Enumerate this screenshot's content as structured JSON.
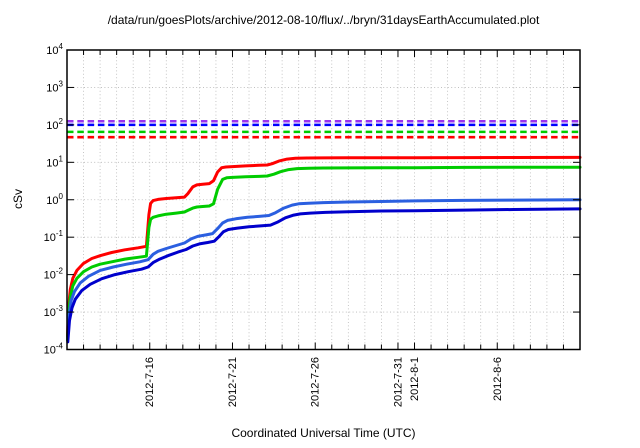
{
  "page": {
    "background": "#ffffff"
  },
  "header": {
    "title": "/data/run/goesPlots/archive/2012-08-10/flux/../bryn/31daysEarthAccumulated.plot"
  },
  "chart_data": {
    "type": "line",
    "title": "/data/run/goesPlots/archive/2012-08-10/flux/../bryn/31daysEarthAccumulated.plot",
    "xlabel": "Coordinated Universal Time (UTC)",
    "ylabel": "cSv",
    "grid": true,
    "legend_position": "none",
    "y_axis": {
      "scale": "log",
      "min": 0.0001,
      "max": 10000,
      "unit": "cSv",
      "decade_exponents": [
        4,
        3,
        2,
        1,
        0,
        -1,
        -2,
        -3,
        -4
      ]
    },
    "x_axis": {
      "span_days": 31,
      "minor_tick_every_days": 1,
      "tick_labels": [
        {
          "label": "2012-7-16",
          "day": 5
        },
        {
          "label": "2012-7-21",
          "day": 10
        },
        {
          "label": "2012-7-26",
          "day": 15
        },
        {
          "label": "2012-7-31",
          "day": 20
        },
        {
          "label": "2012-8-1",
          "day": 21
        },
        {
          "label": "2012-8-6",
          "day": 26
        }
      ]
    },
    "limit_lines": [
      {
        "name": "limit-purple",
        "color": "#9933ee",
        "value": 125
      },
      {
        "name": "limit-blue",
        "color": "#0000ff",
        "value": 100
      },
      {
        "name": "limit-green",
        "color": "#00cc00",
        "value": 65
      },
      {
        "name": "limit-red",
        "color": "#ff0000",
        "value": 47
      }
    ],
    "series": [
      {
        "name": "accumulated-dose-red",
        "color": "#ff0000",
        "width": 3,
        "points": [
          [
            0.03,
            0.00022
          ],
          [
            0.1,
            0.0015
          ],
          [
            0.2,
            0.004
          ],
          [
            0.35,
            0.008
          ],
          [
            0.6,
            0.013
          ],
          [
            1,
            0.02
          ],
          [
            1.5,
            0.027
          ],
          [
            2,
            0.032
          ],
          [
            2.7,
            0.039
          ],
          [
            3.5,
            0.046
          ],
          [
            4.3,
            0.052
          ],
          [
            4.8,
            0.057
          ],
          [
            4.95,
            0.4
          ],
          [
            5.05,
            0.8
          ],
          [
            5.2,
            0.95
          ],
          [
            5.5,
            1.02
          ],
          [
            6,
            1.08
          ],
          [
            6.6,
            1.13
          ],
          [
            7.1,
            1.18
          ],
          [
            7.3,
            1.45
          ],
          [
            7.6,
            2.2
          ],
          [
            7.85,
            2.5
          ],
          [
            8.2,
            2.6
          ],
          [
            8.6,
            2.7
          ],
          [
            8.85,
            3.2
          ],
          [
            9.1,
            5.5
          ],
          [
            9.35,
            7.2
          ],
          [
            9.6,
            7.5
          ],
          [
            10,
            7.7
          ],
          [
            10.8,
            8.0
          ],
          [
            11.6,
            8.3
          ],
          [
            12.1,
            8.5
          ],
          [
            12.4,
            9.2
          ],
          [
            12.8,
            10.8
          ],
          [
            13.3,
            12.2
          ],
          [
            13.8,
            12.8
          ],
          [
            14.5,
            13.0
          ],
          [
            15.5,
            13.1
          ],
          [
            17,
            13.2
          ],
          [
            19,
            13.25
          ],
          [
            21,
            13.3
          ],
          [
            24,
            13.4
          ],
          [
            27,
            13.45
          ],
          [
            31,
            13.5
          ]
        ]
      },
      {
        "name": "accumulated-dose-green",
        "color": "#00cc00",
        "width": 3,
        "points": [
          [
            0.03,
            0.00018
          ],
          [
            0.1,
            0.001
          ],
          [
            0.2,
            0.0025
          ],
          [
            0.35,
            0.005
          ],
          [
            0.6,
            0.008
          ],
          [
            1,
            0.012
          ],
          [
            1.5,
            0.016
          ],
          [
            2,
            0.019
          ],
          [
            2.7,
            0.022
          ],
          [
            3.5,
            0.026
          ],
          [
            4.3,
            0.029
          ],
          [
            4.8,
            0.031
          ],
          [
            4.95,
            0.18
          ],
          [
            5.05,
            0.3
          ],
          [
            5.2,
            0.34
          ],
          [
            5.5,
            0.37
          ],
          [
            6,
            0.41
          ],
          [
            6.6,
            0.44
          ],
          [
            7.1,
            0.47
          ],
          [
            7.3,
            0.52
          ],
          [
            7.6,
            0.6
          ],
          [
            7.85,
            0.64
          ],
          [
            8.2,
            0.66
          ],
          [
            8.6,
            0.68
          ],
          [
            8.85,
            0.78
          ],
          [
            9.1,
            1.9
          ],
          [
            9.4,
            3.5
          ],
          [
            9.65,
            3.85
          ],
          [
            10,
            3.95
          ],
          [
            10.8,
            4.1
          ],
          [
            11.6,
            4.2
          ],
          [
            12.1,
            4.3
          ],
          [
            12.5,
            4.8
          ],
          [
            12.9,
            5.6
          ],
          [
            13.4,
            6.4
          ],
          [
            13.9,
            6.8
          ],
          [
            14.6,
            6.95
          ],
          [
            15.5,
            7.05
          ],
          [
            17,
            7.1
          ],
          [
            19,
            7.15
          ],
          [
            21,
            7.2
          ],
          [
            24,
            7.3
          ],
          [
            27,
            7.35
          ],
          [
            31,
            7.4
          ]
        ]
      },
      {
        "name": "accumulated-dose-light-blue",
        "color": "#2b5fe0",
        "width": 3,
        "points": [
          [
            0.04,
            0.00018
          ],
          [
            0.12,
            0.0008
          ],
          [
            0.25,
            0.002
          ],
          [
            0.45,
            0.0035
          ],
          [
            0.8,
            0.006
          ],
          [
            1.3,
            0.009
          ],
          [
            2,
            0.013
          ],
          [
            2.8,
            0.016
          ],
          [
            3.6,
            0.019
          ],
          [
            4.4,
            0.022
          ],
          [
            4.9,
            0.025
          ],
          [
            5.2,
            0.035
          ],
          [
            5.5,
            0.042
          ],
          [
            6,
            0.05
          ],
          [
            6.6,
            0.06
          ],
          [
            7.1,
            0.07
          ],
          [
            7.5,
            0.09
          ],
          [
            7.9,
            0.105
          ],
          [
            8.4,
            0.115
          ],
          [
            8.8,
            0.125
          ],
          [
            9.1,
            0.17
          ],
          [
            9.4,
            0.24
          ],
          [
            9.7,
            0.28
          ],
          [
            10.2,
            0.31
          ],
          [
            10.9,
            0.34
          ],
          [
            11.6,
            0.36
          ],
          [
            12.2,
            0.38
          ],
          [
            12.6,
            0.45
          ],
          [
            13.1,
            0.6
          ],
          [
            13.6,
            0.72
          ],
          [
            14,
            0.78
          ],
          [
            14.6,
            0.81
          ],
          [
            15.5,
            0.84
          ],
          [
            17,
            0.87
          ],
          [
            19,
            0.9
          ],
          [
            21,
            0.93
          ],
          [
            24,
            0.96
          ],
          [
            27,
            0.98
          ],
          [
            31,
            1.0
          ]
        ]
      },
      {
        "name": "accumulated-dose-dark-blue",
        "color": "#0000cc",
        "width": 3,
        "points": [
          [
            0.05,
            0.00016
          ],
          [
            0.15,
            0.0006
          ],
          [
            0.3,
            0.0013
          ],
          [
            0.5,
            0.0022
          ],
          [
            0.9,
            0.0038
          ],
          [
            1.4,
            0.0055
          ],
          [
            2.1,
            0.0078
          ],
          [
            2.9,
            0.01
          ],
          [
            3.7,
            0.012
          ],
          [
            4.5,
            0.014
          ],
          [
            4.9,
            0.016
          ],
          [
            5.2,
            0.021
          ],
          [
            5.6,
            0.026
          ],
          [
            6.1,
            0.032
          ],
          [
            6.7,
            0.04
          ],
          [
            7.2,
            0.047
          ],
          [
            7.6,
            0.058
          ],
          [
            8,
            0.066
          ],
          [
            8.5,
            0.072
          ],
          [
            8.9,
            0.078
          ],
          [
            9.15,
            0.1
          ],
          [
            9.45,
            0.14
          ],
          [
            9.75,
            0.16
          ],
          [
            10.3,
            0.175
          ],
          [
            11,
            0.19
          ],
          [
            11.7,
            0.2
          ],
          [
            12.3,
            0.21
          ],
          [
            12.7,
            0.25
          ],
          [
            13.2,
            0.33
          ],
          [
            13.7,
            0.39
          ],
          [
            14.1,
            0.42
          ],
          [
            14.7,
            0.44
          ],
          [
            15.6,
            0.46
          ],
          [
            17,
            0.48
          ],
          [
            19,
            0.5
          ],
          [
            21,
            0.51
          ],
          [
            24,
            0.53
          ],
          [
            27,
            0.55
          ],
          [
            31,
            0.57
          ]
        ]
      }
    ],
    "style_colors": {
      "grid": "#b8b8b8",
      "border": "#000000",
      "text": "#000000"
    }
  }
}
